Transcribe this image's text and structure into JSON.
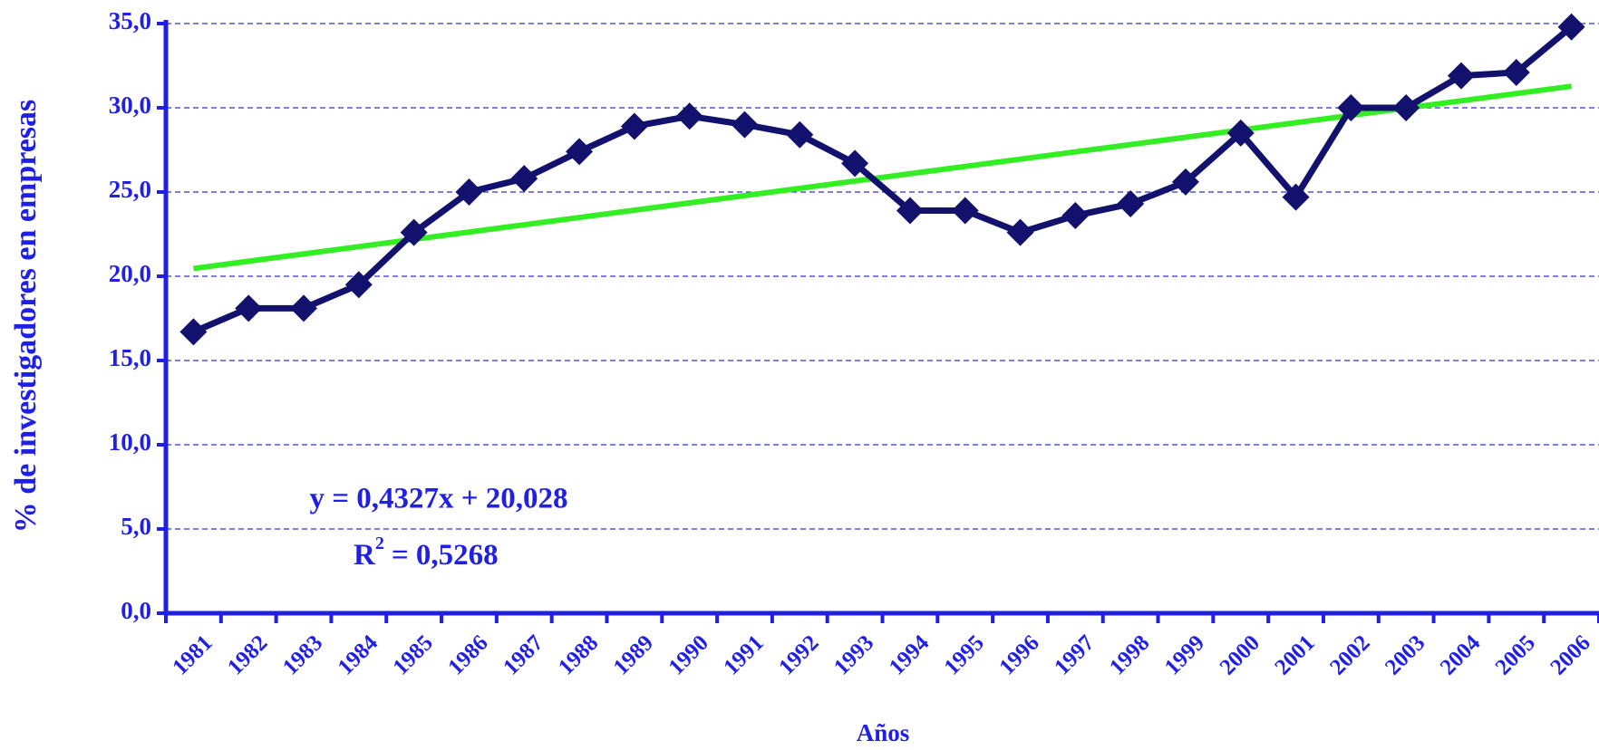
{
  "chart_data": {
    "type": "line",
    "y_label": "% de investigadores en empresas",
    "x_label": "Años",
    "categories": [
      "1981",
      "1982",
      "1983",
      "1984",
      "1985",
      "1986",
      "1987",
      "1988",
      "1989",
      "1990",
      "1991",
      "1992",
      "1993",
      "1994",
      "1995",
      "1996",
      "1997",
      "1998",
      "1999",
      "2000",
      "2001",
      "2002",
      "2003",
      "2004",
      "2005",
      "2006"
    ],
    "series": [
      {
        "color": "#12126e",
        "values": [
          16.7,
          18.1,
          18.1,
          19.5,
          22.6,
          25.0,
          25.8,
          27.4,
          28.9,
          29.5,
          29.0,
          28.4,
          26.7,
          23.9,
          23.9,
          22.6,
          23.6,
          24.3,
          25.6,
          28.5,
          24.7,
          30.0,
          30.0,
          31.9,
          32.1,
          34.8
        ]
      }
    ],
    "trendline": {
      "color": "#33ee22",
      "values": [
        20.46,
        31.28
      ],
      "equation": "y = 0,4327x + 20,028",
      "r2": [
        "R",
        "2",
        "= 0,5268"
      ]
    },
    "ylim": [
      0,
      35
    ],
    "yticks": [
      {
        "value": 0,
        "label": "0,0"
      },
      {
        "value": 5,
        "label": "5,0"
      },
      {
        "value": 10,
        "label": "10,0"
      },
      {
        "value": 15,
        "label": "15,0"
      },
      {
        "value": 20,
        "label": "20,0"
      },
      {
        "value": 25,
        "label": "25,0"
      },
      {
        "value": 30,
        "label": "30,0"
      },
      {
        "value": 35,
        "label": "35,0"
      }
    ],
    "grid": true,
    "axis_color": "#1f1fe6"
  }
}
